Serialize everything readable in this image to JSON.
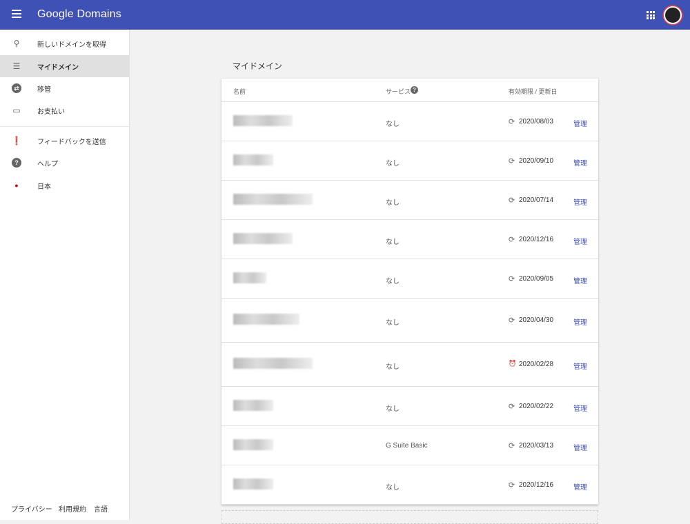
{
  "header": {
    "logo": "Google Domains",
    "menu_icon": "hamburger-icon",
    "apps_icon": "apps-grid-icon"
  },
  "sidebar": {
    "items": [
      {
        "label": "新しいドメインを取得",
        "icon": "search-icon",
        "glyph": "⚲"
      },
      {
        "label": "マイドメイン",
        "icon": "list-icon",
        "glyph": "☰",
        "selected": true
      },
      {
        "label": "移管",
        "icon": "transfer-icon",
        "glyph": "⇄"
      },
      {
        "label": "お支払い",
        "icon": "credit-card-icon",
        "glyph": "▭"
      },
      {
        "label": "フィードバックを送信",
        "icon": "feedback-icon",
        "glyph": "❗"
      },
      {
        "label": "ヘルプ",
        "icon": "help-icon",
        "glyph": "?"
      },
      {
        "label": "日本",
        "icon": "japan-flag-icon",
        "glyph": "●"
      }
    ],
    "footer": [
      "プライバシー",
      "利用規約",
      "言語"
    ]
  },
  "main": {
    "title": "マイドメイン",
    "columns": {
      "name": "名前",
      "service": "サービス",
      "expiry": "有効期限 / 更新日"
    },
    "rows": [
      {
        "service": "なし",
        "date": "2020/08/03",
        "status": "renew",
        "action": "管理"
      },
      {
        "service": "なし",
        "date": "2020/09/10",
        "status": "renew",
        "action": "管理"
      },
      {
        "service": "なし",
        "date": "2020/07/14",
        "status": "renew",
        "action": "管理"
      },
      {
        "service": "なし",
        "date": "2020/12/16",
        "status": "renew",
        "action": "管理"
      },
      {
        "service": "なし",
        "date": "2020/09/05",
        "status": "renew",
        "action": "管理"
      },
      {
        "service": "なし",
        "date": "2020/04/30",
        "status": "renew",
        "action": "管理"
      },
      {
        "service": "なし",
        "date": "2020/02/28",
        "status": "alarm",
        "action": "管理"
      },
      {
        "service": "なし",
        "date": "2020/02/22",
        "status": "renew",
        "action": "管理"
      },
      {
        "service": "G Suite Basic",
        "date": "2020/03/13",
        "status": "renew",
        "action": "管理"
      },
      {
        "service": "なし",
        "date": "2020/12/16",
        "status": "renew",
        "action": "管理"
      }
    ]
  },
  "colors": {
    "brand": "#3f51b5",
    "flag": "#c0001a"
  }
}
